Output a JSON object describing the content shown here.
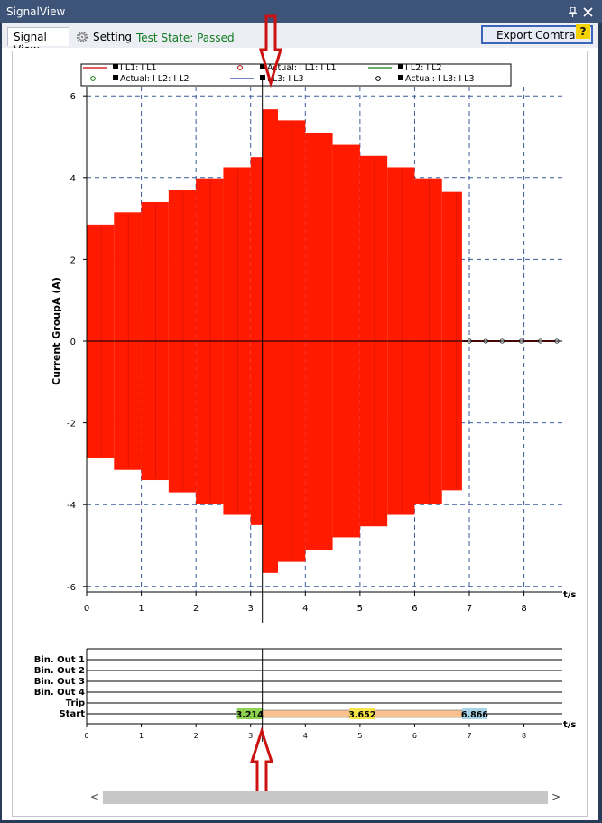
{
  "window": {
    "title": "SignalView"
  },
  "toolbar": {
    "tab_signal_view": "Signal View",
    "tab_setting": "Setting",
    "test_state": "Test State: Passed",
    "export_label": "Export Comtrade ...",
    "help_label": "?"
  },
  "icons": [
    "pin-icon",
    "close-icon",
    "gear-icon",
    "help-icon",
    "arrow-down-icon",
    "arrow-up-icon",
    "scroll-left-icon",
    "scroll-right-icon"
  ],
  "colors": {
    "title_bar": "#3e5378",
    "signal_fill": "#ff1a00",
    "test_state": "#0e7a1e",
    "marker_1": "#8ed24f",
    "marker_2": "#f7e44a",
    "marker_3": "#a8d4e8",
    "start_bar": "#f9c18e",
    "pointer": "#cc1111"
  },
  "scrollbar": {
    "left_glyph": "<",
    "right_glyph": ">"
  },
  "chart_data": [
    {
      "type": "area",
      "ylabel": "Current GroupA (A)",
      "xlabel": "t/s",
      "xlim": [
        0,
        8.7
      ],
      "ylim": [
        -6.3,
        6.3
      ],
      "xticks": [
        0,
        1,
        2,
        3,
        4,
        5,
        6,
        7,
        8
      ],
      "yticks": [
        -6,
        -4,
        -2,
        0,
        2,
        4,
        6
      ],
      "grid": true,
      "legend": {
        "placement": "top",
        "entries": [
          {
            "label": "I L1: I L1",
            "style": "line",
            "color": "#cc0000"
          },
          {
            "label": "Actual: I L1: I L1",
            "style": "circle",
            "color": "#cc0000"
          },
          {
            "label": "I L2: I L2",
            "style": "line",
            "color": "#1a7a1a"
          },
          {
            "label": "Actual: I L2: I L2",
            "style": "circle",
            "color": "#1a7a1a"
          },
          {
            "label": "I L3: I L3",
            "style": "line",
            "color": "#1a3aa0"
          },
          {
            "label": "Actual: I L3: I L3",
            "style": "circle",
            "color": "#000000"
          }
        ]
      },
      "envelope_steps": [
        {
          "t0": 0,
          "t1": 0.5,
          "amp": 2.85
        },
        {
          "t0": 0.5,
          "t1": 1.0,
          "amp": 3.15
        },
        {
          "t0": 1.0,
          "t1": 1.5,
          "amp": 3.4
        },
        {
          "t0": 1.5,
          "t1": 2.0,
          "amp": 3.7
        },
        {
          "t0": 2.0,
          "t1": 2.5,
          "amp": 3.98
        },
        {
          "t0": 2.5,
          "t1": 3.0,
          "amp": 4.25
        },
        {
          "t0": 3.0,
          "t1": 3.214,
          "amp": 4.5
        },
        {
          "t0": 3.214,
          "t1": 3.5,
          "amp": 5.67
        },
        {
          "t0": 3.5,
          "t1": 4.0,
          "amp": 5.4
        },
        {
          "t0": 4.0,
          "t1": 4.5,
          "amp": 5.1
        },
        {
          "t0": 4.5,
          "t1": 5.0,
          "amp": 4.8
        },
        {
          "t0": 5.0,
          "t1": 5.5,
          "amp": 4.53
        },
        {
          "t0": 5.5,
          "t1": 6.0,
          "amp": 4.25
        },
        {
          "t0": 6.0,
          "t1": 6.5,
          "amp": 3.98
        },
        {
          "t0": 6.5,
          "t1": 6.866,
          "amp": 3.65
        }
      ],
      "actual_points_x": [
        7.0,
        7.3,
        7.6,
        7.95,
        8.3,
        8.6
      ],
      "actual_points_y": 0,
      "cursor_t": 3.214
    },
    {
      "type": "table",
      "xlabel": "t/s",
      "xlim": [
        0,
        8.7
      ],
      "xticks": [
        0,
        1,
        2,
        3,
        4,
        5,
        6,
        7,
        8
      ],
      "signals": [
        "Bin. Out 1",
        "Bin. Out 2",
        "Bin. Out 3",
        "Bin. Out 4",
        "Trip",
        "Start"
      ],
      "start_interval": [
        3.214,
        6.866
      ],
      "markers": [
        {
          "t": 3.214,
          "label": "3.214",
          "color": "#8ed24f",
          "align": "left"
        },
        {
          "t": 5.04,
          "label": "3.652",
          "color": "#f7e44a",
          "align": "center"
        },
        {
          "t": 6.866,
          "label": "6.866",
          "color": "#a8d4e8",
          "align": "right"
        }
      ]
    }
  ]
}
